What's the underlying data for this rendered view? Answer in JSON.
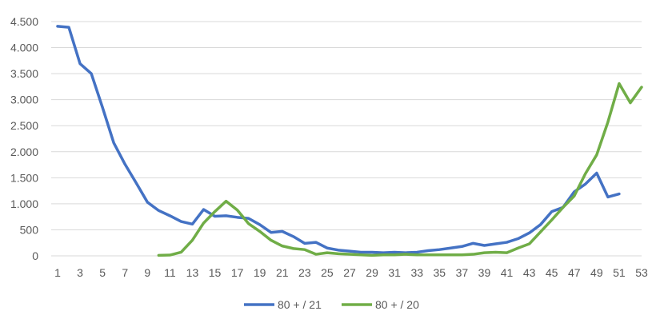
{
  "chart_data": {
    "type": "line",
    "title": "",
    "xlabel": "",
    "ylabel": "",
    "x": [
      1,
      2,
      3,
      4,
      5,
      6,
      7,
      8,
      9,
      10,
      11,
      12,
      13,
      14,
      15,
      16,
      17,
      18,
      19,
      20,
      21,
      22,
      23,
      24,
      25,
      26,
      27,
      28,
      29,
      30,
      31,
      32,
      33,
      34,
      35,
      36,
      37,
      38,
      39,
      40,
      41,
      42,
      43,
      44,
      45,
      46,
      47,
      48,
      49,
      50,
      51,
      52,
      53
    ],
    "x_tick_labels": [
      "1",
      "3",
      "5",
      "7",
      "9",
      "11",
      "13",
      "15",
      "17",
      "19",
      "21",
      "23",
      "25",
      "27",
      "29",
      "31",
      "33",
      "35",
      "37",
      "39",
      "41",
      "43",
      "45",
      "47",
      "49",
      "51",
      "53"
    ],
    "y_tick_labels": [
      "0",
      "500",
      "1.000",
      "1.500",
      "2.000",
      "2.500",
      "3.000",
      "3.500",
      "4.000",
      "4.500"
    ],
    "y_ticks": [
      0,
      500,
      1000,
      1500,
      2000,
      2500,
      3000,
      3500,
      4000,
      4500
    ],
    "ylim": [
      0,
      4500
    ],
    "xlim": [
      1,
      53
    ],
    "grid": "horizontal",
    "legend_position": "bottom",
    "series": [
      {
        "name": "80 + / 21",
        "color": "#4472c4",
        "values": [
          4410,
          4390,
          3690,
          3500,
          2850,
          2170,
          1760,
          1400,
          1030,
          870,
          770,
          660,
          610,
          890,
          760,
          770,
          740,
          720,
          600,
          450,
          470,
          370,
          240,
          260,
          150,
          110,
          90,
          70,
          70,
          60,
          70,
          60,
          70,
          100,
          120,
          150,
          180,
          240,
          200,
          230,
          260,
          330,
          440,
          600,
          850,
          930,
          1230,
          1380,
          1590,
          1130,
          1190,
          null,
          null
        ]
      },
      {
        "name": "80 + / 20",
        "color": "#70ad47",
        "values": [
          null,
          null,
          null,
          null,
          null,
          null,
          null,
          null,
          null,
          10,
          15,
          70,
          300,
          630,
          850,
          1050,
          880,
          620,
          470,
          300,
          190,
          140,
          120,
          30,
          60,
          40,
          30,
          20,
          10,
          20,
          20,
          30,
          20,
          20,
          20,
          20,
          20,
          30,
          60,
          70,
          60,
          150,
          230,
          460,
          690,
          930,
          1150,
          1580,
          1940,
          2570,
          3310,
          2940,
          3240
        ]
      }
    ]
  }
}
